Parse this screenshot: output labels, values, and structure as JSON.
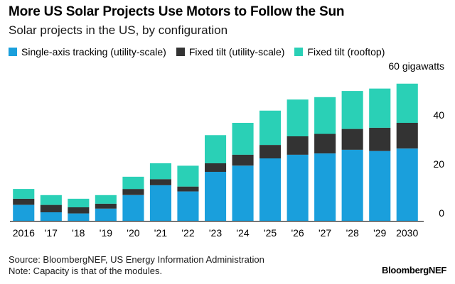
{
  "header": {
    "title": "More US Solar Projects Use Motors to Follow the Sun",
    "subtitle": "Solar projects in the US, by configuration"
  },
  "footer": {
    "source": "Source: BloombergNEF, US Energy Information Administration",
    "note": "Note: Capacity is that of the modules.",
    "brand": "BloombergNEF"
  },
  "chart_data": {
    "type": "bar",
    "stacked": true,
    "categories": [
      "2016",
      "'17",
      "'18",
      "'19",
      "'20",
      "'21",
      "'22",
      "'23",
      "'24",
      "'25",
      "'26",
      "'27",
      "'28",
      "'29",
      "2030"
    ],
    "series": [
      {
        "name": "Single-axis tracking (utility-scale)",
        "color": "#1a9fdc",
        "values": [
          6.5,
          3.5,
          3.0,
          5.0,
          10.5,
          14.5,
          12.0,
          20.0,
          22.5,
          25.5,
          27.0,
          27.5,
          29.0,
          28.5,
          29.5
        ]
      },
      {
        "name": "Fixed tilt (utility-scale)",
        "color": "#333333",
        "values": [
          2.5,
          3.0,
          2.5,
          2.0,
          2.5,
          2.5,
          2.0,
          3.5,
          4.5,
          5.5,
          7.5,
          8.0,
          8.5,
          9.5,
          10.5
        ]
      },
      {
        "name": "Fixed tilt (rooftop)",
        "color": "#2ad0b6",
        "values": [
          4.0,
          4.0,
          3.5,
          3.5,
          5.0,
          6.5,
          8.5,
          11.5,
          13.0,
          14.0,
          15.0,
          15.0,
          15.5,
          16.0,
          16.0
        ]
      }
    ],
    "y_ticks": [
      0,
      20,
      40,
      60
    ],
    "y_top_label": "60 gigawatts",
    "ylim": [
      0,
      60
    ],
    "grid": false,
    "legend_position": "top-left"
  }
}
